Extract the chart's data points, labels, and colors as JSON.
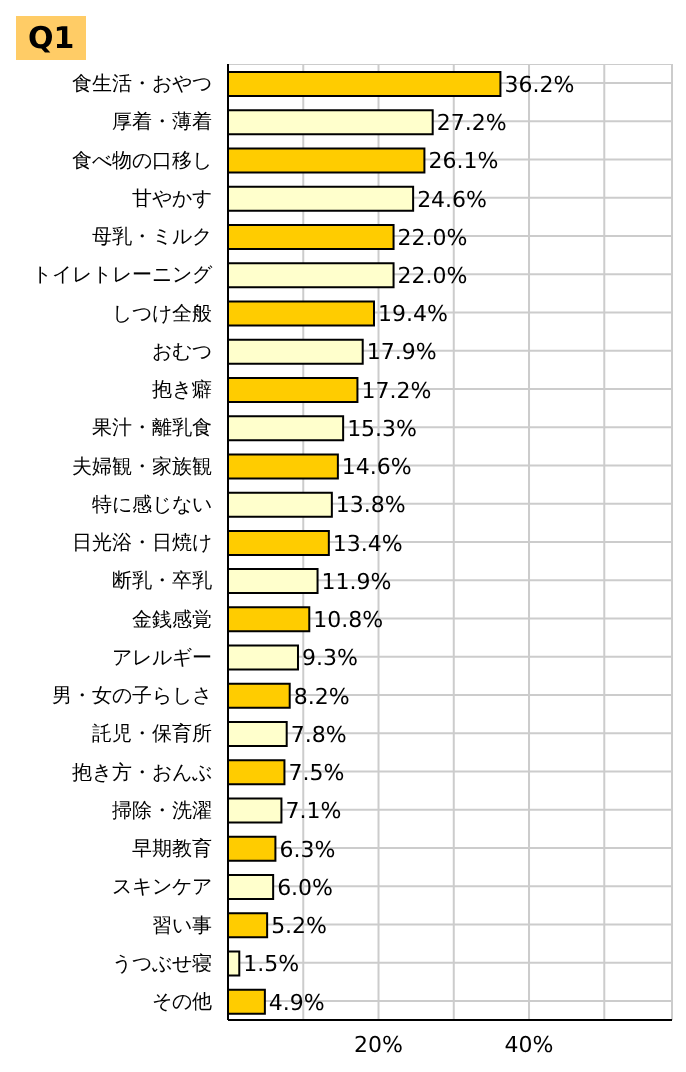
{
  "chart_data": {
    "type": "bar",
    "orientation": "horizontal",
    "title": "Q1",
    "categories": [
      "食生活・おやつ",
      "厚着・薄着",
      "食べ物の口移し",
      "甘やかす",
      "母乳・ミルク",
      "トイレトレーニング",
      "しつけ全般",
      "おむつ",
      "抱き癖",
      "果汁・離乳食",
      "夫婦観・家族観",
      "特に感じない",
      "日光浴・日焼け",
      "断乳・卒乳",
      "金銭感覚",
      "アレルギー",
      "男・女の子らしさ",
      "託児・保育所",
      "抱き方・おんぶ",
      "掃除・洗濯",
      "早期教育",
      "スキンケア",
      "習い事",
      "うつぶせ寝",
      "その他"
    ],
    "values": [
      36.2,
      27.2,
      26.1,
      24.6,
      22.0,
      22.0,
      19.4,
      17.9,
      17.2,
      15.3,
      14.6,
      13.8,
      13.4,
      11.9,
      10.8,
      9.3,
      8.2,
      7.8,
      7.5,
      7.1,
      6.3,
      6.0,
      5.2,
      1.5,
      4.9
    ],
    "value_labels": [
      "36.2%",
      "27.2%",
      "26.1%",
      "24.6%",
      "22.0%",
      "22.0%",
      "19.4%",
      "17.9%",
      "17.2%",
      "15.3%",
      "14.6%",
      "13.8%",
      "13.4%",
      "11.9%",
      "10.8%",
      "9.3%",
      "8.2%",
      "7.8%",
      "7.5%",
      "7.1%",
      "6.3%",
      "6.0%",
      "5.2%",
      "1.5%",
      "4.9%"
    ],
    "colors": [
      "#ffcc00",
      "#ffffcc",
      "#ffcc00",
      "#ffffcc",
      "#ffcc00",
      "#ffffcc",
      "#ffcc00",
      "#ffffcc",
      "#ffcc00",
      "#ffffcc",
      "#ffcc00",
      "#ffffcc",
      "#ffcc00",
      "#ffffcc",
      "#ffcc00",
      "#ffffcc",
      "#ffcc00",
      "#ffffcc",
      "#ffcc00",
      "#ffffcc",
      "#ffcc00",
      "#ffffcc",
      "#ffcc00",
      "#ffffcc",
      "#ffcc00"
    ],
    "xlim": [
      0,
      59
    ],
    "xticks": [
      {
        "value": 10,
        "label": null
      },
      {
        "value": 20,
        "label": "20%"
      },
      {
        "value": 30,
        "label": null
      },
      {
        "value": 40,
        "label": "40%"
      },
      {
        "value": 50,
        "label": null
      }
    ],
    "grid": true
  }
}
